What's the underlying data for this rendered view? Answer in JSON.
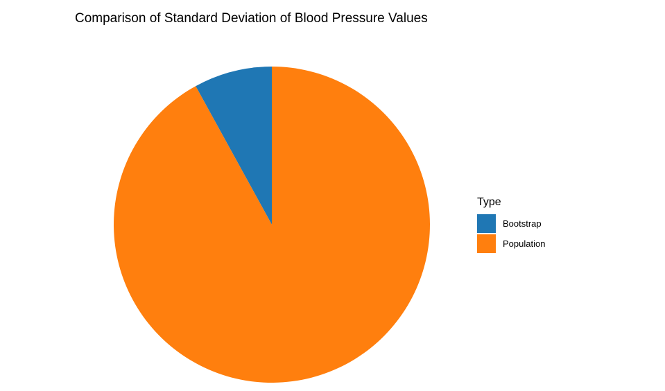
{
  "chart_data": {
    "type": "pie",
    "title": "Comparison of Standard Deviation of Blood Pressure Values",
    "legend_title": "Type",
    "legend_position": "right",
    "categories": [
      "Bootstrap",
      "Population"
    ],
    "values": [
      0.08,
      0.92
    ],
    "colors": [
      "#1F77B4",
      "#FF7F0E"
    ],
    "start": "12 o'clock",
    "direction": "counterclockwise"
  }
}
